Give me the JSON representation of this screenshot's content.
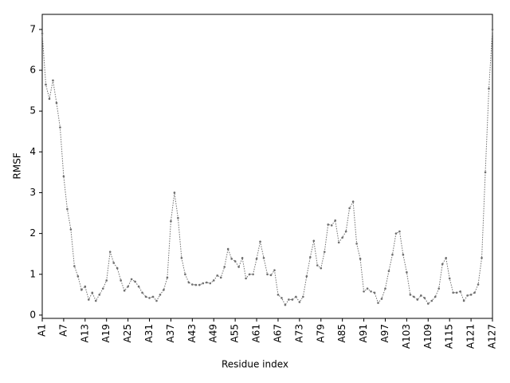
{
  "chart_data": {
    "type": "line",
    "xlabel": "Residue index",
    "ylabel": "RMSF",
    "categories": [
      "A1",
      null,
      null,
      null,
      null,
      null,
      "A7",
      null,
      null,
      null,
      null,
      null,
      "A13",
      null,
      null,
      null,
      null,
      null,
      "A19",
      null,
      null,
      null,
      null,
      null,
      "A25",
      null,
      null,
      null,
      null,
      null,
      "A31",
      null,
      null,
      null,
      null,
      null,
      "A37",
      null,
      null,
      null,
      null,
      null,
      "A43",
      null,
      null,
      null,
      null,
      null,
      "A49",
      null,
      null,
      null,
      null,
      null,
      "A55",
      null,
      null,
      null,
      null,
      null,
      "A61",
      null,
      null,
      null,
      null,
      null,
      "A67",
      null,
      null,
      null,
      null,
      null,
      "A73",
      null,
      null,
      null,
      null,
      null,
      "A79",
      null,
      null,
      null,
      null,
      null,
      "A85",
      null,
      null,
      null,
      null,
      null,
      "A91",
      null,
      null,
      null,
      null,
      null,
      "A97",
      null,
      null,
      null,
      null,
      null,
      "A103",
      null,
      null,
      null,
      null,
      null,
      "A109",
      null,
      null,
      null,
      null,
      null,
      "A115",
      null,
      null,
      null,
      null,
      null,
      "A121",
      null,
      null,
      null,
      null,
      null,
      "A127"
    ],
    "values": [
      6.9,
      5.65,
      5.3,
      5.75,
      5.2,
      4.6,
      3.4,
      2.6,
      2.1,
      1.2,
      0.95,
      0.62,
      0.7,
      0.38,
      0.55,
      0.35,
      0.5,
      0.65,
      0.85,
      1.55,
      1.28,
      1.15,
      0.85,
      0.6,
      0.7,
      0.88,
      0.82,
      0.7,
      0.55,
      0.45,
      0.42,
      0.45,
      0.35,
      0.5,
      0.62,
      0.92,
      2.3,
      3.0,
      2.38,
      1.4,
      1.0,
      0.8,
      0.75,
      0.74,
      0.74,
      0.78,
      0.8,
      0.78,
      0.85,
      0.97,
      0.92,
      1.18,
      1.62,
      1.38,
      1.32,
      1.18,
      1.4,
      0.9,
      1.0,
      1.0,
      1.38,
      1.8,
      1.4,
      1.0,
      0.98,
      1.1,
      0.5,
      0.42,
      0.25,
      0.38,
      0.38,
      0.45,
      0.32,
      0.45,
      0.95,
      1.42,
      1.82,
      1.22,
      1.15,
      1.55,
      2.22,
      2.2,
      2.32,
      1.78,
      1.9,
      2.05,
      2.62,
      2.78,
      1.75,
      1.38,
      0.58,
      0.65,
      0.58,
      0.55,
      0.3,
      0.4,
      0.65,
      1.08,
      1.48,
      2.0,
      2.05,
      1.48,
      1.05,
      0.5,
      0.45,
      0.38,
      0.48,
      0.42,
      0.28,
      0.35,
      0.45,
      0.65,
      1.25,
      1.4,
      0.9,
      0.55,
      0.55,
      0.58,
      0.35,
      0.48,
      0.5,
      0.55,
      0.75,
      1.4,
      3.5,
      5.55,
      7.0
    ],
    "color": "#6e6e6e",
    "ylim": [
      -0.08,
      7.37
    ],
    "yticks": [
      0,
      1,
      2,
      3,
      4,
      5,
      6,
      7
    ]
  }
}
